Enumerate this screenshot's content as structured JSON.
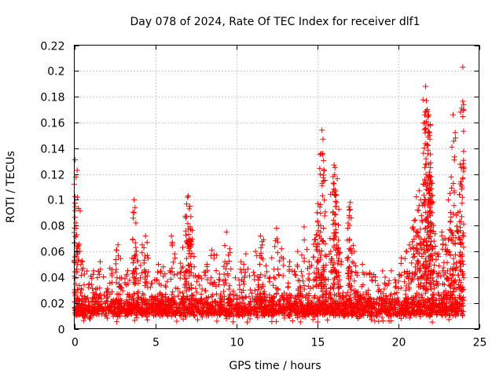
{
  "chart_data": {
    "type": "scatter",
    "title": "Day 078 of 2024, Rate Of TEC Index for receiver dlf1",
    "xlabel": "GPS time / hours",
    "ylabel": "ROTI / TECUs",
    "xlim": [
      0,
      25
    ],
    "ylim": [
      0,
      0.22
    ],
    "xticks": [
      0,
      5,
      10,
      15,
      20,
      25
    ],
    "yticks": [
      0,
      0.02,
      0.04,
      0.06,
      0.08,
      0.1,
      0.12,
      0.14,
      0.16,
      0.18,
      0.2,
      0.22
    ],
    "grid": true,
    "marker": "plus",
    "color": "#ff0000",
    "baseline": {
      "min": 0.005,
      "max": 0.03
    },
    "spikes": [
      {
        "x": 0.05,
        "y": 0.131
      },
      {
        "x": 0.1,
        "y": 0.082
      },
      {
        "x": 0.15,
        "y": 0.073
      },
      {
        "x": 0.2,
        "y": 0.102
      },
      {
        "x": 0.35,
        "y": 0.06
      },
      {
        "x": 0.5,
        "y": 0.052
      },
      {
        "x": 1.2,
        "y": 0.045
      },
      {
        "x": 1.6,
        "y": 0.052
      },
      {
        "x": 2.2,
        "y": 0.047
      },
      {
        "x": 2.6,
        "y": 0.061
      },
      {
        "x": 2.7,
        "y": 0.065
      },
      {
        "x": 3.3,
        "y": 0.045
      },
      {
        "x": 3.7,
        "y": 0.1
      },
      {
        "x": 3.75,
        "y": 0.094
      },
      {
        "x": 3.8,
        "y": 0.063
      },
      {
        "x": 4.2,
        "y": 0.065
      },
      {
        "x": 4.4,
        "y": 0.072
      },
      {
        "x": 4.5,
        "y": 0.067
      },
      {
        "x": 5.2,
        "y": 0.05
      },
      {
        "x": 5.5,
        "y": 0.048
      },
      {
        "x": 6.0,
        "y": 0.072
      },
      {
        "x": 6.2,
        "y": 0.058
      },
      {
        "x": 6.7,
        "y": 0.063
      },
      {
        "x": 7.0,
        "y": 0.102
      },
      {
        "x": 7.05,
        "y": 0.103
      },
      {
        "x": 7.1,
        "y": 0.093
      },
      {
        "x": 7.15,
        "y": 0.079
      },
      {
        "x": 7.2,
        "y": 0.087
      },
      {
        "x": 7.4,
        "y": 0.056
      },
      {
        "x": 8.2,
        "y": 0.05
      },
      {
        "x": 8.5,
        "y": 0.061
      },
      {
        "x": 8.8,
        "y": 0.057
      },
      {
        "x": 9.3,
        "y": 0.052
      },
      {
        "x": 9.4,
        "y": 0.075
      },
      {
        "x": 9.6,
        "y": 0.062
      },
      {
        "x": 10.3,
        "y": 0.052
      },
      {
        "x": 10.6,
        "y": 0.058
      },
      {
        "x": 11.2,
        "y": 0.06
      },
      {
        "x": 11.5,
        "y": 0.072
      },
      {
        "x": 11.7,
        "y": 0.069
      },
      {
        "x": 12.2,
        "y": 0.055
      },
      {
        "x": 12.5,
        "y": 0.078
      },
      {
        "x": 12.8,
        "y": 0.062
      },
      {
        "x": 13.3,
        "y": 0.052
      },
      {
        "x": 13.8,
        "y": 0.06
      },
      {
        "x": 14.2,
        "y": 0.079
      },
      {
        "x": 14.5,
        "y": 0.052
      },
      {
        "x": 14.9,
        "y": 0.069
      },
      {
        "x": 15.0,
        "y": 0.09
      },
      {
        "x": 15.05,
        "y": 0.097
      },
      {
        "x": 15.1,
        "y": 0.08
      },
      {
        "x": 15.15,
        "y": 0.06
      },
      {
        "x": 15.3,
        "y": 0.154
      },
      {
        "x": 15.35,
        "y": 0.135
      },
      {
        "x": 15.4,
        "y": 0.078
      },
      {
        "x": 15.5,
        "y": 0.057
      },
      {
        "x": 15.8,
        "y": 0.07
      },
      {
        "x": 16.0,
        "y": 0.113
      },
      {
        "x": 16.05,
        "y": 0.127
      },
      {
        "x": 16.1,
        "y": 0.125
      },
      {
        "x": 16.15,
        "y": 0.104
      },
      {
        "x": 16.2,
        "y": 0.098
      },
      {
        "x": 16.3,
        "y": 0.063
      },
      {
        "x": 16.5,
        "y": 0.052
      },
      {
        "x": 16.9,
        "y": 0.078
      },
      {
        "x": 17.0,
        "y": 0.092
      },
      {
        "x": 17.05,
        "y": 0.098
      },
      {
        "x": 17.1,
        "y": 0.086
      },
      {
        "x": 17.3,
        "y": 0.06
      },
      {
        "x": 17.8,
        "y": 0.05
      },
      {
        "x": 18.5,
        "y": 0.042
      },
      {
        "x": 19.2,
        "y": 0.04
      },
      {
        "x": 19.8,
        "y": 0.038
      },
      {
        "x": 20.2,
        "y": 0.055
      },
      {
        "x": 20.5,
        "y": 0.06
      },
      {
        "x": 20.7,
        "y": 0.065
      },
      {
        "x": 20.9,
        "y": 0.078
      },
      {
        "x": 21.0,
        "y": 0.084
      },
      {
        "x": 21.1,
        "y": 0.072
      },
      {
        "x": 21.2,
        "y": 0.092
      },
      {
        "x": 21.3,
        "y": 0.107
      },
      {
        "x": 21.4,
        "y": 0.1
      },
      {
        "x": 21.5,
        "y": 0.083
      },
      {
        "x": 21.6,
        "y": 0.098
      },
      {
        "x": 21.7,
        "y": 0.188
      },
      {
        "x": 21.75,
        "y": 0.177
      },
      {
        "x": 21.8,
        "y": 0.17
      },
      {
        "x": 21.85,
        "y": 0.165
      },
      {
        "x": 21.9,
        "y": 0.166
      },
      {
        "x": 21.95,
        "y": 0.15
      },
      {
        "x": 22.0,
        "y": 0.125
      },
      {
        "x": 22.05,
        "y": 0.118
      },
      {
        "x": 22.1,
        "y": 0.09
      },
      {
        "x": 22.2,
        "y": 0.08
      },
      {
        "x": 22.3,
        "y": 0.064
      },
      {
        "x": 22.5,
        "y": 0.058
      },
      {
        "x": 22.7,
        "y": 0.075
      },
      {
        "x": 22.9,
        "y": 0.07
      },
      {
        "x": 23.1,
        "y": 0.1
      },
      {
        "x": 23.2,
        "y": 0.105
      },
      {
        "x": 23.3,
        "y": 0.075
      },
      {
        "x": 23.4,
        "y": 0.166
      },
      {
        "x": 23.6,
        "y": 0.088
      },
      {
        "x": 23.7,
        "y": 0.09
      },
      {
        "x": 23.8,
        "y": 0.083
      },
      {
        "x": 23.9,
        "y": 0.125
      },
      {
        "x": 23.95,
        "y": 0.11
      },
      {
        "x": 24.0,
        "y": 0.203
      }
    ]
  }
}
